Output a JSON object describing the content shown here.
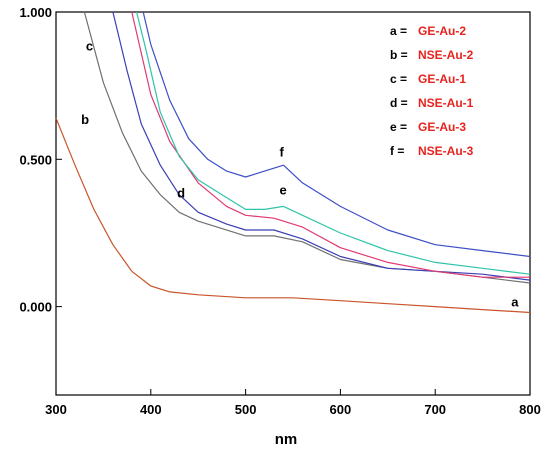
{
  "chart_data": {
    "type": "line",
    "xlabel": "nm",
    "ylabel": "",
    "xlim": [
      300,
      800
    ],
    "ylim": [
      -0.3,
      1.0
    ],
    "x_ticks": [
      "300",
      "400",
      "500",
      "600",
      "700",
      "800"
    ],
    "y_ticks": [
      "1.000",
      "0.500",
      "0.000"
    ],
    "x_tick_values": [
      300,
      400,
      500,
      600,
      700,
      800
    ],
    "y_tick_values": [
      1.0,
      0.5,
      0.0
    ],
    "grid": false,
    "legend_position": "top-right",
    "legend": [
      {
        "key": "a =",
        "name": "GE-Au-2"
      },
      {
        "key": "b =",
        "name": "NSE-Au-2"
      },
      {
        "key": "c =",
        "name": "GE-Au-1"
      },
      {
        "key": "d =",
        "name": "NSE-Au-1"
      },
      {
        "key": "e =",
        "name": "GE-Au-3"
      },
      {
        "key": "f =",
        "name": "NSE-Au-3"
      }
    ],
    "series": [
      {
        "id": "a",
        "label": "a",
        "color": "#c8552b",
        "x": [
          300,
          320,
          340,
          360,
          380,
          400,
          420,
          450,
          500,
          550,
          600,
          650,
          700,
          750,
          800
        ],
        "y": [
          0.64,
          0.48,
          0.33,
          0.21,
          0.12,
          0.07,
          0.05,
          0.04,
          0.03,
          0.03,
          0.02,
          0.01,
          0.0,
          -0.01,
          -0.02
        ]
      },
      {
        "id": "b",
        "label": "b",
        "color": "#707070",
        "x": [
          330,
          350,
          370,
          390,
          410,
          430,
          450,
          470,
          500,
          530,
          560,
          600,
          650,
          700,
          750,
          800
        ],
        "y": [
          1.0,
          0.76,
          0.59,
          0.46,
          0.38,
          0.32,
          0.29,
          0.27,
          0.24,
          0.24,
          0.22,
          0.16,
          0.13,
          0.12,
          0.1,
          0.08
        ]
      },
      {
        "id": "c",
        "label": "c",
        "color": "#3b3fb5",
        "x": [
          360,
          375,
          390,
          410,
          430,
          450,
          480,
          500,
          530,
          560,
          600,
          650,
          700,
          750,
          800
        ],
        "y": [
          1.0,
          0.8,
          0.62,
          0.48,
          0.38,
          0.32,
          0.28,
          0.26,
          0.26,
          0.23,
          0.17,
          0.13,
          0.12,
          0.11,
          0.09
        ]
      },
      {
        "id": "d",
        "label": "d",
        "color": "#e23a73",
        "x": [
          380,
          390,
          400,
          420,
          450,
          480,
          500,
          530,
          560,
          600,
          650,
          700,
          750,
          800
        ],
        "y": [
          1.0,
          0.86,
          0.72,
          0.56,
          0.42,
          0.34,
          0.31,
          0.3,
          0.27,
          0.2,
          0.15,
          0.12,
          0.1,
          0.1
        ]
      },
      {
        "id": "e",
        "label": "e",
        "color": "#2ec4a9",
        "x": [
          385,
          395,
          410,
          430,
          450,
          480,
          500,
          520,
          540,
          560,
          600,
          650,
          700,
          750,
          800
        ],
        "y": [
          1.0,
          0.87,
          0.66,
          0.51,
          0.43,
          0.37,
          0.33,
          0.33,
          0.34,
          0.31,
          0.25,
          0.19,
          0.15,
          0.13,
          0.11
        ]
      },
      {
        "id": "f",
        "label": "f",
        "color": "#3d4fc4",
        "x": [
          392,
          400,
          420,
          440,
          460,
          480,
          500,
          520,
          540,
          560,
          600,
          650,
          700,
          750,
          800
        ],
        "y": [
          1.0,
          0.89,
          0.7,
          0.57,
          0.5,
          0.46,
          0.44,
          0.46,
          0.48,
          0.42,
          0.34,
          0.26,
          0.21,
          0.19,
          0.17
        ]
      }
    ]
  }
}
